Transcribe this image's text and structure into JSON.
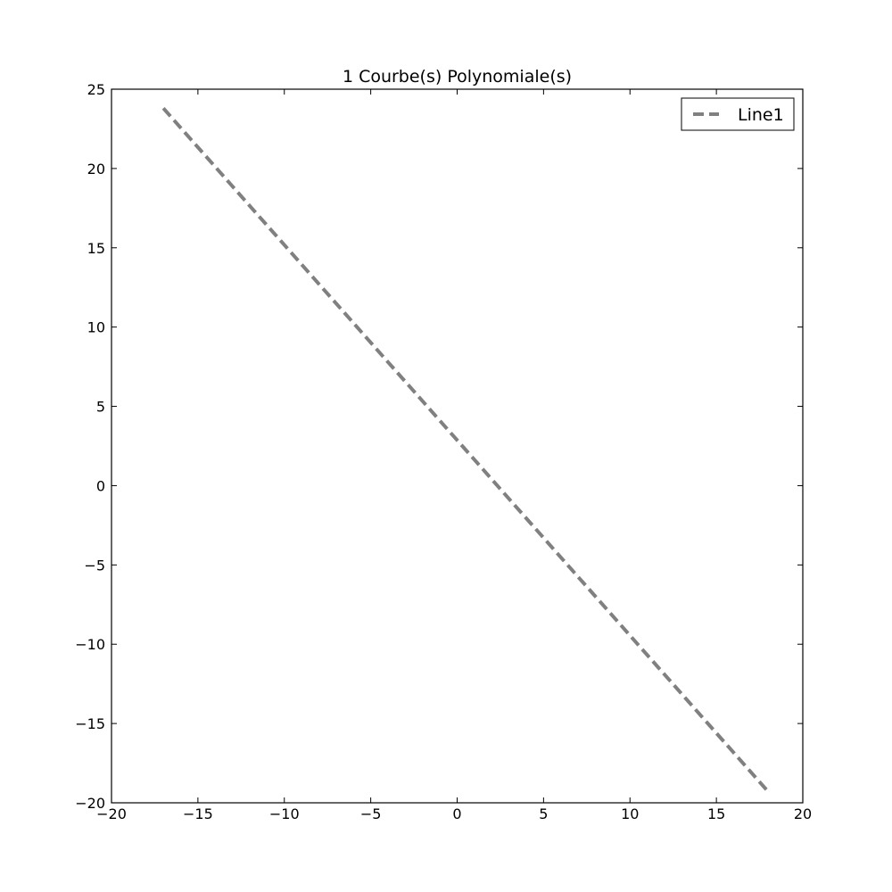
{
  "chart_data": {
    "type": "line",
    "title": "1 Courbe(s) Polynomiale(s)",
    "xlabel": "",
    "ylabel": "",
    "xlim": [
      -20,
      20
    ],
    "ylim": [
      -20,
      25
    ],
    "xticks": [
      -20,
      -15,
      -10,
      -5,
      0,
      5,
      10,
      15,
      20
    ],
    "yticks": [
      -20,
      -15,
      -10,
      -5,
      0,
      5,
      10,
      15,
      20,
      25
    ],
    "xtick_labels": [
      "−20",
      "−15",
      "−10",
      "−5",
      "0",
      "5",
      "10",
      "15",
      "20"
    ],
    "ytick_labels": [
      "−20",
      "−15",
      "−10",
      "−5",
      "0",
      "5",
      "10",
      "15",
      "20",
      "25"
    ],
    "grid": false,
    "legend_position": "top-right",
    "series": [
      {
        "name": "Line1",
        "color": "#808080",
        "style": "dashed",
        "x": [
          -17,
          18
        ],
        "y": [
          23.8,
          -19.3
        ]
      }
    ]
  }
}
